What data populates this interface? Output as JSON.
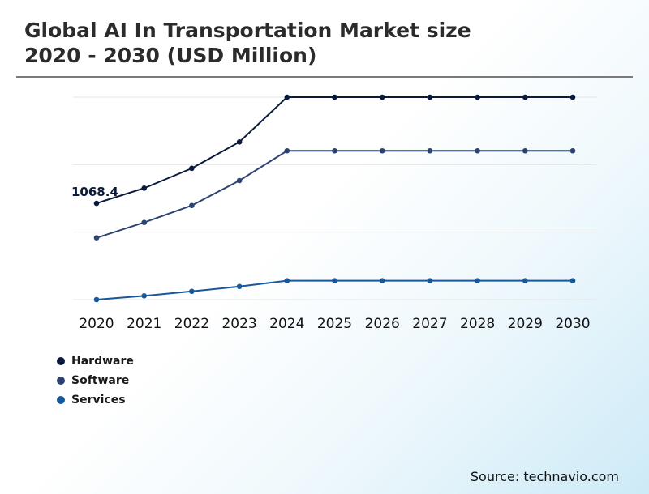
{
  "title_lines": [
    "Global AI In Transportation Market size",
    "2020 - 2030 (USD Million)"
  ],
  "source": "Source: technavio.com",
  "chart_data": {
    "type": "line",
    "x": [
      "2020",
      "2021",
      "2022",
      "2023",
      "2024",
      "2025",
      "2026",
      "2027",
      "2028",
      "2029",
      "2030"
    ],
    "series": [
      {
        "name": "Hardware",
        "color": "#0b1a3c",
        "values": [
          1068.4,
          1236,
          1456,
          1748,
          2245,
          2245,
          2245,
          2245,
          2245,
          2245,
          2245
        ]
      },
      {
        "name": "Software",
        "color": "#2d4372",
        "values": [
          685,
          856,
          1044,
          1320,
          1650,
          1650,
          1650,
          1650,
          1650,
          1650,
          1650
        ]
      },
      {
        "name": "Services",
        "color": "#17579a",
        "values": [
          0,
          42,
          92,
          146,
          210,
          210,
          210,
          210,
          210,
          210,
          210
        ]
      }
    ],
    "data_labels": [
      {
        "series": 0,
        "index": 0,
        "text": "1068.4"
      }
    ],
    "ylim": [
      0,
      2245
    ],
    "grid": true,
    "legend": "bottom-left"
  }
}
